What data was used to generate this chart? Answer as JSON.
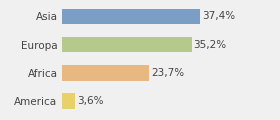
{
  "categories": [
    "America",
    "Africa",
    "Europa",
    "Asia"
  ],
  "values": [
    3.6,
    23.7,
    35.2,
    37.4
  ],
  "labels": [
    "3,6%",
    "23,7%",
    "35,2%",
    "37,4%"
  ],
  "bar_colors": [
    "#e8d06a",
    "#e8b882",
    "#b5c98a",
    "#7b9ec4"
  ],
  "background_color": "#f0f0f0",
  "xlim": [
    0,
    50
  ],
  "bar_height": 0.55,
  "label_fontsize": 7.5,
  "tick_fontsize": 7.5
}
